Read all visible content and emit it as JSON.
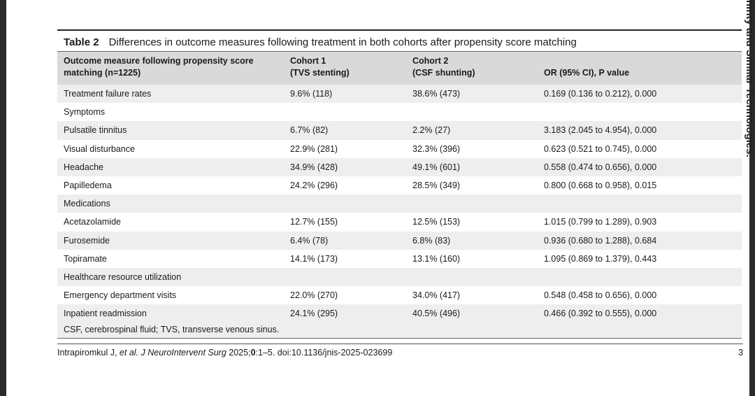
{
  "side_text": "ninty and Similar Technologies.",
  "table": {
    "label": "Table 2",
    "caption": "Differences in outcome measures following treatment in both cohorts after propensity score matching",
    "headers": [
      {
        "line1": "Outcome measure following propensity score",
        "line2": "matching (n=1225)"
      },
      {
        "line1": "Cohort 1",
        "line2": "(TVS stenting)"
      },
      {
        "line1": "Cohort 2",
        "line2": "(CSF shunting)"
      },
      {
        "line1": "",
        "line2": "OR (95% CI), P value"
      }
    ],
    "rows": [
      {
        "measure": "Treatment failure rates",
        "cohort1": "9.6% (118)",
        "cohort2": "38.6% (473)",
        "or": "0.169 (0.136 to 0.212), 0.000"
      },
      {
        "measure": "Symptoms",
        "cohort1": "",
        "cohort2": "",
        "or": ""
      },
      {
        "measure": "Pulsatile tinnitus",
        "cohort1": "6.7% (82)",
        "cohort2": "2.2% (27)",
        "or": "3.183 (2.045 to 4.954), 0.000"
      },
      {
        "measure": "Visual disturbance",
        "cohort1": "22.9% (281)",
        "cohort2": "32.3% (396)",
        "or": "0.623 (0.521 to 0.745), 0.000"
      },
      {
        "measure": "Headache",
        "cohort1": "34.9% (428)",
        "cohort2": "49.1% (601)",
        "or": "0.558 (0.474 to 0.656), 0.000"
      },
      {
        "measure": "Papilledema",
        "cohort1": "24.2% (296)",
        "cohort2": "28.5% (349)",
        "or": "0.800 (0.668 to 0.958), 0.015"
      },
      {
        "measure": "Medications",
        "cohort1": "",
        "cohort2": "",
        "or": ""
      },
      {
        "measure": "Acetazolamide",
        "cohort1": "12.7% (155)",
        "cohort2": "12.5% (153)",
        "or": "1.015 (0.799 to 1.289), 0.903"
      },
      {
        "measure": "Furosemide",
        "cohort1": "6.4% (78)",
        "cohort2": "6.8% (83)",
        "or": "0.936 (0.680 to 1.288), 0.684"
      },
      {
        "measure": "Topiramate",
        "cohort1": "14.1% (173)",
        "cohort2": "13.1% (160)",
        "or": "1.095 (0.869 to 1.379), 0.443"
      },
      {
        "measure": "Healthcare resource utilization",
        "cohort1": "",
        "cohort2": "",
        "or": ""
      },
      {
        "measure": "Emergency department visits",
        "cohort1": "22.0% (270)",
        "cohort2": "34.0% (417)",
        "or": "0.548 (0.458 to 0.656), 0.000"
      },
      {
        "measure": "Inpatient readmission",
        "cohort1": "24.1% (295)",
        "cohort2": "40.5% (496)",
        "or": "0.466 (0.392 to 0.555), 0.000"
      }
    ],
    "footnote": "CSF, cerebrospinal fluid; TVS, transverse venous sinus."
  },
  "footer": {
    "authors": "Intrapiromkul J, ",
    "etal": "et al.",
    "journal": " J NeuroIntervent Surg",
    "year_vol": " 2025;",
    "volume": "0",
    "pages_doi": ":1–5. doi:10.1136/jnis-2025-023699",
    "page_number": "3"
  }
}
